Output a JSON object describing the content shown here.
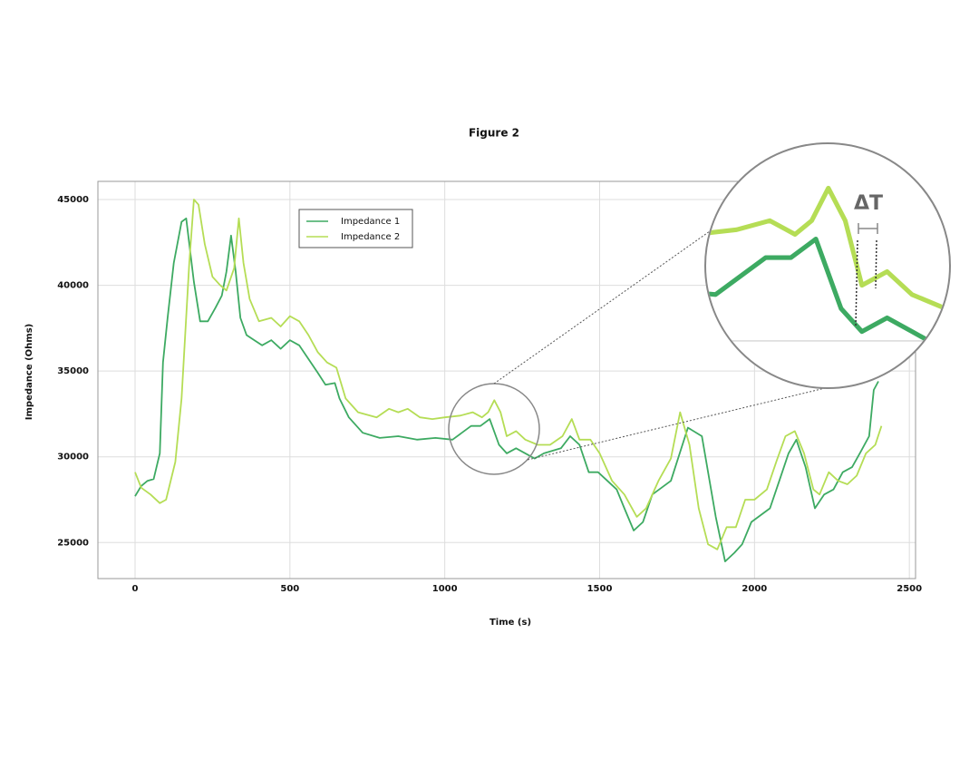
{
  "chart_data": {
    "type": "line",
    "title": "Figure 2",
    "xlabel": "Time (s)",
    "ylabel": "Impedance (Ohms)",
    "annotation": "ΔT",
    "xlim": [
      -120,
      2520
    ],
    "ylim": [
      22900,
      46060
    ],
    "xticks": [
      0,
      500,
      1000,
      1500,
      2000,
      2500
    ],
    "yticks": [
      25000,
      30000,
      35000,
      40000,
      45000
    ],
    "grid": true,
    "legend": "upper left",
    "series": [
      {
        "name": "Impedance 1",
        "color": "#3daa62",
        "x": [
          0,
          20,
          40,
          60,
          80,
          90,
          105,
          125,
          150,
          165,
          190,
          210,
          235,
          260,
          280,
          295,
          310,
          325,
          340,
          360,
          385,
          410,
          440,
          470,
          500,
          530,
          560,
          590,
          615,
          645,
          660,
          690,
          735,
          790,
          850,
          910,
          970,
          1025,
          1085,
          1115,
          1145,
          1175,
          1200,
          1230,
          1260,
          1290,
          1320,
          1375,
          1405,
          1435,
          1465,
          1495,
          1555,
          1580,
          1610,
          1640,
          1670,
          1730,
          1785,
          1830,
          1875,
          1905,
          1935,
          1960,
          1990,
          2050,
          2080,
          2110,
          2135,
          2165,
          2195,
          2225,
          2255,
          2285,
          2315,
          2340,
          2370,
          2385,
          2400
        ],
        "values": [
          27700,
          28300,
          28600,
          28700,
          30200,
          35500,
          38100,
          41300,
          43700,
          43900,
          40200,
          37900,
          37900,
          38700,
          39400,
          40800,
          42900,
          40800,
          38100,
          37100,
          36800,
          36500,
          36800,
          36300,
          36800,
          36500,
          35700,
          34900,
          34200,
          34300,
          33400,
          32300,
          31400,
          31100,
          31200,
          31000,
          31100,
          31000,
          31800,
          31800,
          32200,
          30700,
          30200,
          30500,
          30200,
          29900,
          30200,
          30500,
          31200,
          30700,
          29100,
          29100,
          28100,
          27000,
          25700,
          26200,
          27800,
          28600,
          31700,
          31200,
          26500,
          23900,
          24400,
          24900,
          26200,
          27000,
          28600,
          30200,
          31000,
          29400,
          27000,
          27800,
          28100,
          29100,
          29400,
          30200,
          31200,
          33900,
          34400
        ]
      },
      {
        "name": "Impedance 2",
        "color": "#b5dd55",
        "x": [
          0,
          20,
          50,
          80,
          100,
          130,
          150,
          175,
          190,
          205,
          225,
          250,
          275,
          295,
          320,
          335,
          350,
          370,
          400,
          440,
          470,
          500,
          530,
          560,
          590,
          620,
          650,
          680,
          720,
          780,
          820,
          850,
          880,
          920,
          960,
          1000,
          1050,
          1090,
          1120,
          1140,
          1160,
          1180,
          1200,
          1230,
          1260,
          1300,
          1340,
          1380,
          1410,
          1435,
          1470,
          1500,
          1540,
          1580,
          1620,
          1650,
          1690,
          1730,
          1760,
          1790,
          1820,
          1850,
          1880,
          1910,
          1940,
          1970,
          2000,
          2040,
          2070,
          2100,
          2130,
          2160,
          2190,
          2210,
          2240,
          2270,
          2300,
          2330,
          2360,
          2390,
          2410
        ],
        "values": [
          29100,
          28200,
          27800,
          27300,
          27500,
          29700,
          33400,
          41300,
          45000,
          44700,
          42400,
          40500,
          40000,
          39700,
          41000,
          43900,
          41300,
          39200,
          37900,
          38100,
          37600,
          38200,
          37900,
          37100,
          36100,
          35500,
          35200,
          33400,
          32600,
          32300,
          32800,
          32600,
          32800,
          32300,
          32200,
          32300,
          32400,
          32600,
          32300,
          32600,
          33300,
          32600,
          31200,
          31500,
          31000,
          30700,
          30700,
          31200,
          32200,
          31000,
          31000,
          30200,
          28600,
          27800,
          26500,
          27000,
          28600,
          29900,
          32600,
          30700,
          27000,
          24900,
          24600,
          25900,
          25900,
          27500,
          27500,
          28100,
          29700,
          31200,
          31500,
          30200,
          28100,
          27800,
          29100,
          28600,
          28400,
          28900,
          30200,
          30700,
          31800
        ]
      }
    ]
  }
}
